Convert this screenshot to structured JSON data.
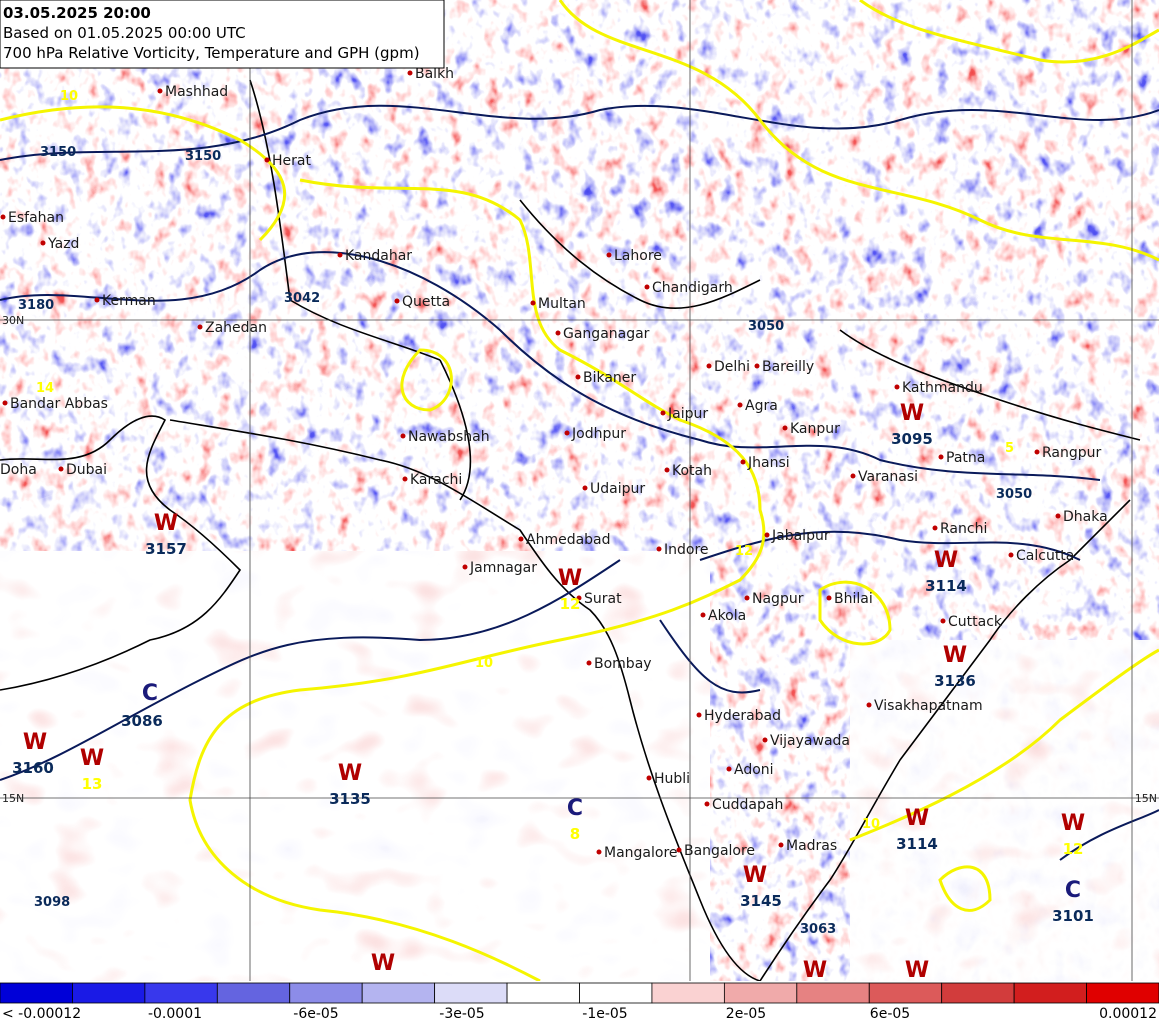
{
  "header": {
    "valid": "03.05.2025 20:00",
    "based_on": "Based on 01.05.2025 00:00 UTC",
    "title": "700 hPa Relative Vorticity, Temperature and GPH (gpm)"
  },
  "cities": [
    "Mashhad",
    "Herat",
    "Balkh",
    "Esfahan",
    "Yazd",
    "Kerman",
    "Zahedan",
    "Kandahar",
    "Quetta",
    "Bandar Abbas",
    "Doha",
    "Dubai",
    "Nawabshah",
    "Karachi",
    "Multan",
    "Lahore",
    "Chandigarh",
    "Ganganagar",
    "Bikaner",
    "Delhi",
    "Bareilly",
    "Jaipur",
    "Agra",
    "Kanpur",
    "Kathmandu",
    "Jodhpur",
    "Kotah",
    "Jhansi",
    "Varanasi",
    "Patna",
    "Rangpur",
    "Udaipur",
    "Ahmedabad",
    "Indore",
    "Jabalpur",
    "Ranchi",
    "Calcutta",
    "Dhaka",
    "Jamnagar",
    "Surat",
    "Nagpur",
    "Akola",
    "Bhilai",
    "Cuttack",
    "Bombay",
    "Hyderabad",
    "Visakhapatnam",
    "Vijayawada",
    "Adoni",
    "Hubli",
    "Cuddapah",
    "Mangalore",
    "Bangalore",
    "Madras"
  ],
  "systems": [
    {
      "letter": "W",
      "value": "3095",
      "value_color": "#0a2a5a"
    },
    {
      "letter": "W",
      "value": "12",
      "value_color": "#ffff00"
    },
    {
      "letter": "W",
      "value": "3157",
      "value_color": "#0a2a5a"
    },
    {
      "letter": "W",
      "value": "3114",
      "value_color": "#0a2a5a"
    },
    {
      "letter": "W",
      "value": "3136",
      "value_color": "#0a2a5a"
    },
    {
      "letter": "C",
      "value": "3086",
      "value_color": "#0a2a5a"
    },
    {
      "letter": "W",
      "value": "3160",
      "value_color": "#0a2a5a"
    },
    {
      "letter": "W",
      "value": "13",
      "value_color": "#ffff00"
    },
    {
      "letter": "W",
      "value": "3135",
      "value_color": "#0a2a5a"
    },
    {
      "letter": "C",
      "value": "8",
      "value_color": "#ffff00"
    },
    {
      "letter": "W",
      "value": "3114",
      "value_color": "#0a2a5a"
    },
    {
      "letter": "W",
      "value": "12",
      "value_color": "#ffff00"
    },
    {
      "letter": "C",
      "value": "3101",
      "value_color": "#0a2a5a"
    },
    {
      "letter": "W",
      "value": "3145",
      "value_color": "#0a2a5a"
    }
  ],
  "lone_letters": [
    "W",
    "W",
    "W"
  ],
  "contour_labels": [
    "3042",
    "3180",
    "3098",
    "3063",
    "14",
    "3150",
    "3050",
    "10",
    "12",
    "10",
    "3050",
    "3150",
    "10",
    "5"
  ],
  "lat_labels": [
    "30N",
    "15N",
    "15N"
  ],
  "colorbar": {
    "colors": [
      "#0000d8",
      "#1a1ae6",
      "#3838ec",
      "#6464e0",
      "#8c8ce8",
      "#b4b4f0",
      "#dcdcf8",
      "#ffffff",
      "#ffffff",
      "#fad2d2",
      "#f0aaaa",
      "#e68282",
      "#dc5a5a",
      "#d23c3c",
      "#d21e1e",
      "#e00000"
    ],
    "labels": [
      "< -0.00012",
      "-0.0001",
      "-6e-05",
      "-3e-05",
      "-1e-05",
      "2e-05",
      "6e-05",
      "0.00012"
    ]
  }
}
